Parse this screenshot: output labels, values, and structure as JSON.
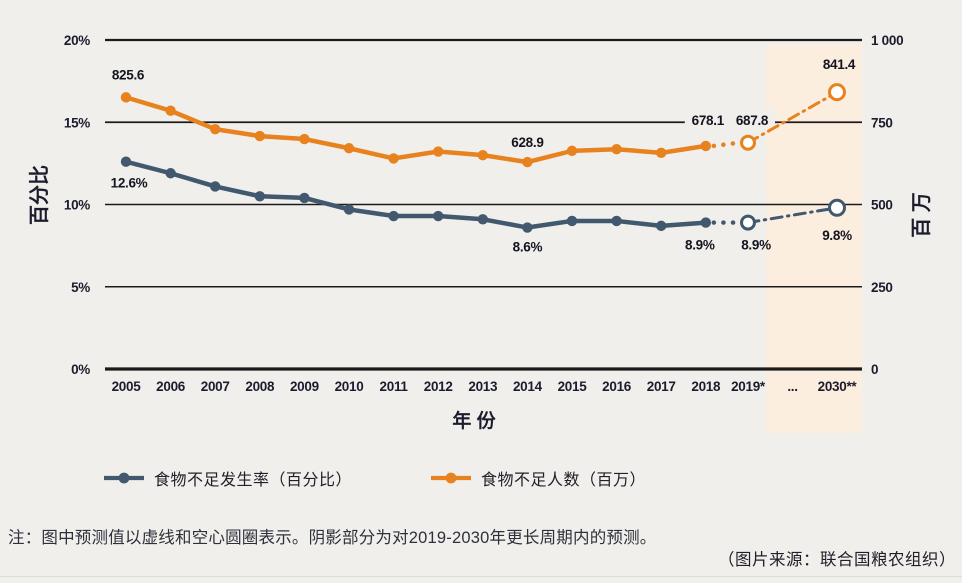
{
  "chart_data": {
    "type": "line",
    "categories": [
      "2005",
      "2006",
      "2007",
      "2008",
      "2009",
      "2010",
      "2011",
      "2012",
      "2013",
      "2014",
      "2015",
      "2016",
      "2017",
      "2018",
      "2019*",
      "...",
      "2030**"
    ],
    "x_axis_label": "年 份",
    "left_axis": {
      "label": "百分比",
      "ticks": [
        "0%",
        "5%",
        "10%",
        "15%",
        "20%"
      ],
      "tick_values": [
        0,
        5,
        10,
        15,
        20
      ],
      "range": [
        0,
        20
      ]
    },
    "right_axis": {
      "label": "百 万",
      "ticks": [
        "0",
        "250",
        "500",
        "750",
        "1 000"
      ],
      "tick_values": [
        0,
        250,
        500,
        750,
        1000
      ],
      "range": [
        0,
        1000
      ]
    },
    "series": [
      {
        "name": "食物不足发生率（百分比）",
        "axis": "left",
        "color": "#42586E",
        "solid_through_category": "2018",
        "forecast_categories": [
          "2019*",
          "2030**"
        ],
        "values": [
          12.6,
          11.9,
          11.1,
          10.5,
          10.4,
          9.7,
          9.3,
          9.3,
          9.1,
          8.6,
          9.0,
          9.0,
          8.7,
          8.9,
          8.9,
          null,
          9.8
        ],
        "point_labels": {
          "2005": "12.6%",
          "2014": "8.6%",
          "2018": "8.9%",
          "2019*": "8.9%",
          "2030**": "9.8%"
        }
      },
      {
        "name": "食物不足人数（百万）",
        "axis": "right",
        "color": "#E8821E",
        "solid_through_category": "2018",
        "forecast_categories": [
          "2019*",
          "2030**"
        ],
        "values": [
          825.6,
          785,
          729,
          708,
          699,
          671,
          640,
          661,
          650,
          628.9,
          663,
          668,
          657,
          678.1,
          687.8,
          null,
          841.4
        ],
        "point_labels": {
          "2005": "825.6",
          "2014": "628.9",
          "2018": "678.1",
          "2019*": "687.8",
          "2030**": "841.4"
        }
      }
    ],
    "forecast_shading": {
      "from": "2019*",
      "to": "2030**",
      "color": "#FCEEDF"
    },
    "grid": "horizontal",
    "legend_position": "bottom"
  },
  "axis_titles": {
    "left": "百分比",
    "right": "百 万",
    "x": "年 份"
  },
  "legend": [
    {
      "label": "食物不足发生率（百分比）",
      "color": "#42586E"
    },
    {
      "label": "食物不足人数（百万）",
      "color": "#E8821E"
    }
  ],
  "note": "注：图中预测值以虚线和空心圆圈表示。阴影部分为对2019-2030年更长周期内的预测。",
  "source": "（图片来源：联合国粮农组织）",
  "colors": {
    "background": "#F0EFEB",
    "gridline": "#1B1B1B",
    "shading": "#FCEEDF",
    "rate_line": "#42586E",
    "number_line": "#E8821E",
    "text": "#1C1C2E"
  }
}
